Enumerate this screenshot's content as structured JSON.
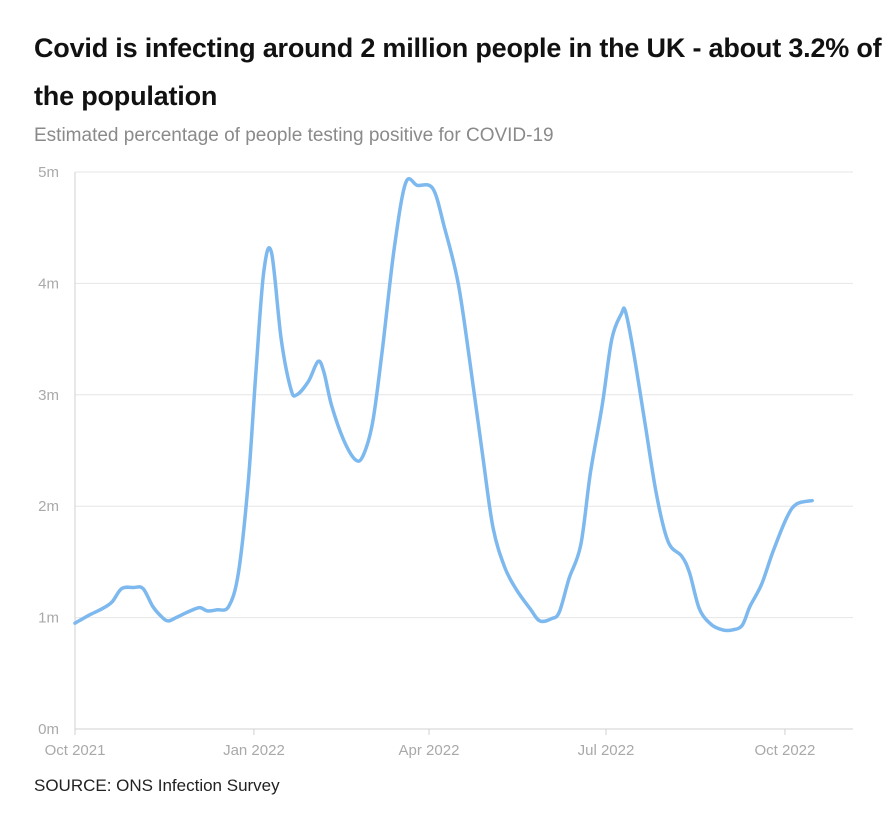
{
  "title": "Covid is infecting around 2 million people in the UK - about 3.2% of the population",
  "subtitle": "Estimated percentage of people testing positive for COVID-19",
  "source": "SOURCE: ONS Infection Survey",
  "colors": {
    "line": "#7db9ee",
    "grid": "#e6e6e6",
    "axis": "#d0d0d0",
    "tick_text": "#a9a9a9"
  },
  "chart_data": {
    "type": "line",
    "title": "Covid is infecting around 2 million people in the UK - about 3.2% of the population",
    "subtitle": "Estimated percentage of people testing positive for COVID-19",
    "xlabel": "",
    "ylabel": "",
    "x_range": [
      "2021-10-01",
      "2022-11-05"
    ],
    "ylim": [
      0,
      5
    ],
    "grid": true,
    "legend": "none",
    "x_ticks": [
      {
        "date": "2021-10-01",
        "label": "Oct 2021"
      },
      {
        "date": "2022-01-01",
        "label": "Jan 2022"
      },
      {
        "date": "2022-04-01",
        "label": "Apr 2022"
      },
      {
        "date": "2022-07-01",
        "label": "Jul 2022"
      },
      {
        "date": "2022-10-01",
        "label": "Oct 2022"
      }
    ],
    "y_ticks": [
      {
        "value": 0,
        "label": "0m"
      },
      {
        "value": 1,
        "label": "1m"
      },
      {
        "value": 2,
        "label": "2m"
      },
      {
        "value": 3,
        "label": "3m"
      },
      {
        "value": 4,
        "label": "4m"
      },
      {
        "value": 5,
        "label": "5m"
      }
    ],
    "y_unit": "millions",
    "series": [
      {
        "points": [
          [
            "2021-10-01",
            0.95
          ],
          [
            "2021-10-08",
            1.02
          ],
          [
            "2021-10-15",
            1.08
          ],
          [
            "2021-10-20",
            1.14
          ],
          [
            "2021-10-25",
            1.26
          ],
          [
            "2021-10-31",
            1.27
          ],
          [
            "2021-11-05",
            1.26
          ],
          [
            "2021-11-10",
            1.1
          ],
          [
            "2021-11-15",
            1.0
          ],
          [
            "2021-11-18",
            0.97
          ],
          [
            "2021-11-22",
            1.0
          ],
          [
            "2021-11-28",
            1.05
          ],
          [
            "2021-12-04",
            1.09
          ],
          [
            "2021-12-08",
            1.06
          ],
          [
            "2021-12-13",
            1.07
          ],
          [
            "2021-12-19",
            1.1
          ],
          [
            "2021-12-24",
            1.4
          ],
          [
            "2021-12-29",
            2.2
          ],
          [
            "2022-01-02",
            3.2
          ],
          [
            "2022-01-06",
            4.1
          ],
          [
            "2022-01-10",
            4.28
          ],
          [
            "2022-01-15",
            3.5
          ],
          [
            "2022-01-20",
            3.05
          ],
          [
            "2022-01-23",
            3.0
          ],
          [
            "2022-01-29",
            3.12
          ],
          [
            "2022-02-03",
            3.3
          ],
          [
            "2022-02-06",
            3.2
          ],
          [
            "2022-02-10",
            2.9
          ],
          [
            "2022-02-16",
            2.6
          ],
          [
            "2022-02-22",
            2.42
          ],
          [
            "2022-02-26",
            2.45
          ],
          [
            "2022-03-03",
            2.75
          ],
          [
            "2022-03-08",
            3.4
          ],
          [
            "2022-03-14",
            4.3
          ],
          [
            "2022-03-20",
            4.9
          ],
          [
            "2022-03-26",
            4.88
          ],
          [
            "2022-04-03",
            4.85
          ],
          [
            "2022-04-09",
            4.5
          ],
          [
            "2022-04-16",
            4.0
          ],
          [
            "2022-04-22",
            3.3
          ],
          [
            "2022-04-29",
            2.4
          ],
          [
            "2022-05-04",
            1.8
          ],
          [
            "2022-05-10",
            1.45
          ],
          [
            "2022-05-16",
            1.25
          ],
          [
            "2022-05-23",
            1.08
          ],
          [
            "2022-05-28",
            0.97
          ],
          [
            "2022-06-03",
            0.99
          ],
          [
            "2022-06-07",
            1.05
          ],
          [
            "2022-06-12",
            1.35
          ],
          [
            "2022-06-18",
            1.65
          ],
          [
            "2022-06-23",
            2.3
          ],
          [
            "2022-06-29",
            2.9
          ],
          [
            "2022-07-04",
            3.5
          ],
          [
            "2022-07-09",
            3.73
          ],
          [
            "2022-07-11",
            3.75
          ],
          [
            "2022-07-15",
            3.4
          ],
          [
            "2022-07-21",
            2.75
          ],
          [
            "2022-07-27",
            2.1
          ],
          [
            "2022-08-02",
            1.68
          ],
          [
            "2022-08-09",
            1.55
          ],
          [
            "2022-08-13",
            1.4
          ],
          [
            "2022-08-18",
            1.08
          ],
          [
            "2022-08-24",
            0.94
          ],
          [
            "2022-08-30",
            0.89
          ],
          [
            "2022-09-04",
            0.89
          ],
          [
            "2022-09-09",
            0.93
          ],
          [
            "2022-09-13",
            1.1
          ],
          [
            "2022-09-19",
            1.3
          ],
          [
            "2022-09-25",
            1.6
          ],
          [
            "2022-10-02",
            1.9
          ],
          [
            "2022-10-07",
            2.02
          ],
          [
            "2022-10-15",
            2.05
          ]
        ]
      }
    ]
  }
}
